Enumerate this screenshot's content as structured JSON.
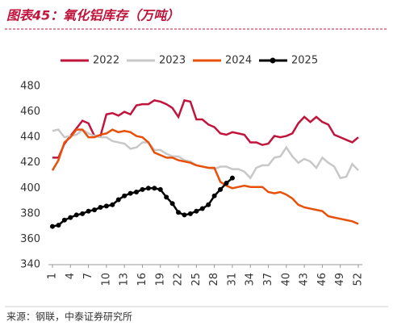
{
  "chart_data": {
    "type": "line",
    "title": "图表45：氧化铝库存（万吨）",
    "source": "来源：钢联，中泰证券研究所",
    "x": [
      1,
      2,
      3,
      4,
      5,
      6,
      7,
      8,
      9,
      10,
      11,
      12,
      13,
      14,
      15,
      16,
      17,
      18,
      19,
      20,
      21,
      22,
      23,
      24,
      25,
      26,
      27,
      28,
      29,
      30,
      31,
      32,
      33,
      34,
      35,
      36,
      37,
      38,
      39,
      40,
      41,
      42,
      43,
      44,
      45,
      46,
      47,
      48,
      49,
      50,
      51,
      52
    ],
    "xlim": [
      1,
      52
    ],
    "xticks": [
      1,
      4,
      7,
      10,
      13,
      16,
      19,
      22,
      25,
      28,
      31,
      34,
      37,
      40,
      43,
      46,
      49,
      52
    ],
    "ylim": [
      340,
      480
    ],
    "yticks": [
      340,
      360,
      380,
      400,
      420,
      440,
      460,
      480
    ],
    "series": [
      {
        "name": "2022",
        "color": "#c0143c",
        "marker": false,
        "values": [
          424,
          424,
          435,
          441,
          447,
          453,
          451,
          441,
          441,
          458,
          459,
          457,
          460,
          458,
          465,
          466,
          466,
          469,
          468,
          466,
          463,
          456,
          469,
          468,
          454,
          454,
          450,
          448,
          443,
          442,
          444,
          443,
          442,
          436,
          436,
          434,
          435,
          441,
          440,
          441,
          443,
          451,
          456,
          452,
          456,
          452,
          450,
          442,
          440,
          438,
          436,
          440
        ]
      },
      {
        "name": "2023",
        "color": "#c8c8c8",
        "marker": false,
        "values": [
          445,
          446,
          440,
          441,
          442,
          446,
          443,
          441,
          440,
          440,
          437,
          436,
          435,
          431,
          432,
          436,
          436,
          430,
          430,
          427,
          425,
          425,
          422,
          421,
          418,
          417,
          416,
          415,
          417,
          417,
          415,
          415,
          413,
          408,
          416,
          418,
          418,
          424,
          425,
          432,
          425,
          420,
          423,
          421,
          416,
          424,
          420,
          417,
          408,
          409,
          419,
          414
        ]
      },
      {
        "name": "2024",
        "color": "#e8500a",
        "marker": false,
        "values": [
          414,
          422,
          436,
          440,
          446,
          446,
          440,
          440,
          442,
          443,
          446,
          444,
          445,
          444,
          441,
          440,
          436,
          428,
          426,
          424,
          424,
          422,
          421,
          420,
          418,
          417,
          416,
          416,
          405,
          402,
          400,
          401,
          402,
          401,
          401,
          401,
          397,
          396,
          397,
          395,
          392,
          387,
          385,
          384,
          383,
          382,
          378,
          377,
          376,
          375,
          374,
          372
        ]
      },
      {
        "name": "2025",
        "color": "#000000",
        "marker": true,
        "values": [
          370,
          371,
          375,
          377,
          379,
          380,
          382,
          383,
          385,
          386,
          387,
          391,
          394,
          396,
          397,
          399,
          400,
          400,
          399,
          393,
          388,
          381,
          379,
          380,
          382,
          384,
          387,
          394,
          399,
          404,
          408,
          null,
          null,
          null,
          null,
          null,
          null,
          null,
          null,
          null,
          null,
          null,
          null,
          null,
          null,
          null,
          null,
          null,
          null,
          null,
          null,
          null
        ]
      }
    ]
  }
}
